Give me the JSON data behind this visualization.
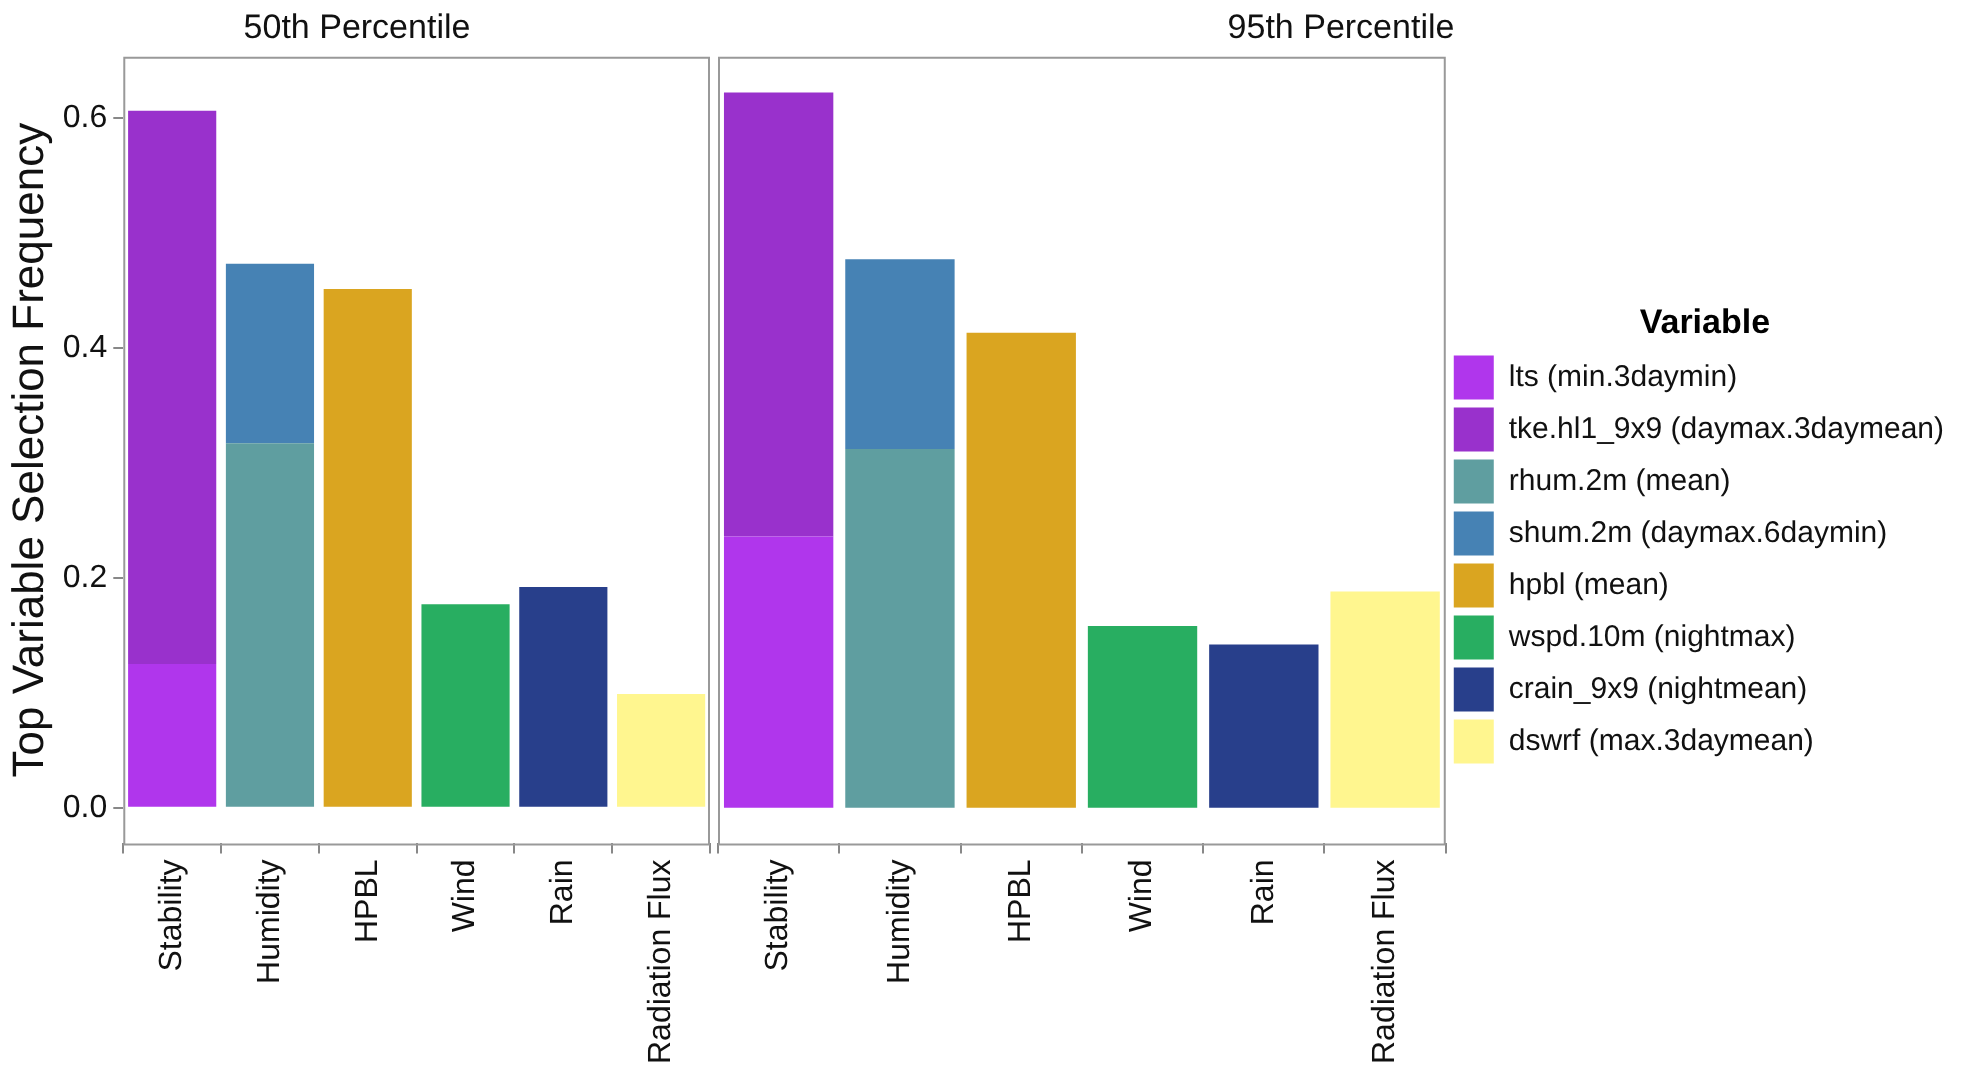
{
  "chart_data": [
    {
      "type": "bar",
      "title": "50th Percentile",
      "ylabel": "Top Variable Selection Frequency",
      "categories": [
        "Stability",
        "Humidity",
        "HPBL",
        "Wind",
        "Rain",
        "Radiation Flux"
      ],
      "stacked": true,
      "ylim": [
        -0.031,
        0.653
      ],
      "yticks": [
        {
          "value": 0,
          "label": "0.0"
        },
        {
          "value": 0.2,
          "label": "0.2"
        },
        {
          "value": 0.4,
          "label": "0.4"
        },
        {
          "value": 0.6,
          "label": "0.6"
        }
      ],
      "grid": false,
      "legend": false,
      "series": [
        {
          "color": "#b036ec",
          "values": [
            0.125,
            null,
            null,
            null,
            null,
            null
          ]
        },
        {
          "color": "#9931cc",
          "values": [
            0.481,
            null,
            null,
            null,
            null,
            null
          ]
        },
        {
          "color": "#5f9ea0",
          "values": [
            null,
            0.317,
            null,
            null,
            null,
            null
          ]
        },
        {
          "color": "#4682b4",
          "values": [
            null,
            0.156,
            null,
            null,
            null,
            null
          ]
        },
        {
          "color": "#daa520",
          "values": [
            null,
            null,
            0.451,
            null,
            null,
            null
          ]
        },
        {
          "color": "#28ae61",
          "values": [
            null,
            null,
            null,
            0.177,
            null,
            null
          ]
        },
        {
          "color": "#283f8b",
          "values": [
            null,
            null,
            null,
            null,
            0.192,
            null
          ]
        },
        {
          "color": "#fff68f",
          "values": [
            null,
            null,
            null,
            null,
            null,
            0.099
          ]
        }
      ]
    },
    {
      "type": "bar",
      "title": "95th Percentile",
      "legend_title": "Variable",
      "categories": [
        "Stability",
        "Humidity",
        "HPBL",
        "Wind",
        "Rain",
        "Radiation Flux"
      ],
      "stacked": true,
      "ylim": [
        -0.031,
        0.653
      ],
      "tick_labels": "x",
      "grid": false,
      "legend": "right",
      "series": [
        {
          "name": "lts (min.3daymin)",
          "color": "#b036ec",
          "values": [
            0.236,
            null,
            null,
            null,
            null,
            null
          ]
        },
        {
          "name": "tke.hl1_9x9 (daymax.3daymean)",
          "color": "#9931cc",
          "values": [
            0.386,
            null,
            null,
            null,
            null,
            null
          ]
        },
        {
          "name": "rhum.2m (mean)",
          "color": "#5f9ea0",
          "values": [
            null,
            0.312,
            null,
            null,
            null,
            null
          ]
        },
        {
          "name": "shum.2m (daymax.6daymin)",
          "color": "#4682b4",
          "values": [
            null,
            0.165,
            null,
            null,
            null,
            null
          ]
        },
        {
          "name": "hpbl (mean)",
          "color": "#daa520",
          "values": [
            null,
            null,
            0.413,
            null,
            null,
            null
          ]
        },
        {
          "name": "wspd.10m (nightmax)",
          "color": "#28ae61",
          "values": [
            null,
            null,
            null,
            0.158,
            null,
            null
          ]
        },
        {
          "name": "crain_9x9 (nightmean)",
          "color": "#283f8b",
          "values": [
            null,
            null,
            null,
            null,
            0.142,
            null
          ]
        },
        {
          "name": "dswrf (max.3daymean)",
          "color": "#fff68f",
          "values": [
            null,
            null,
            null,
            null,
            null,
            0.188
          ]
        }
      ]
    }
  ]
}
